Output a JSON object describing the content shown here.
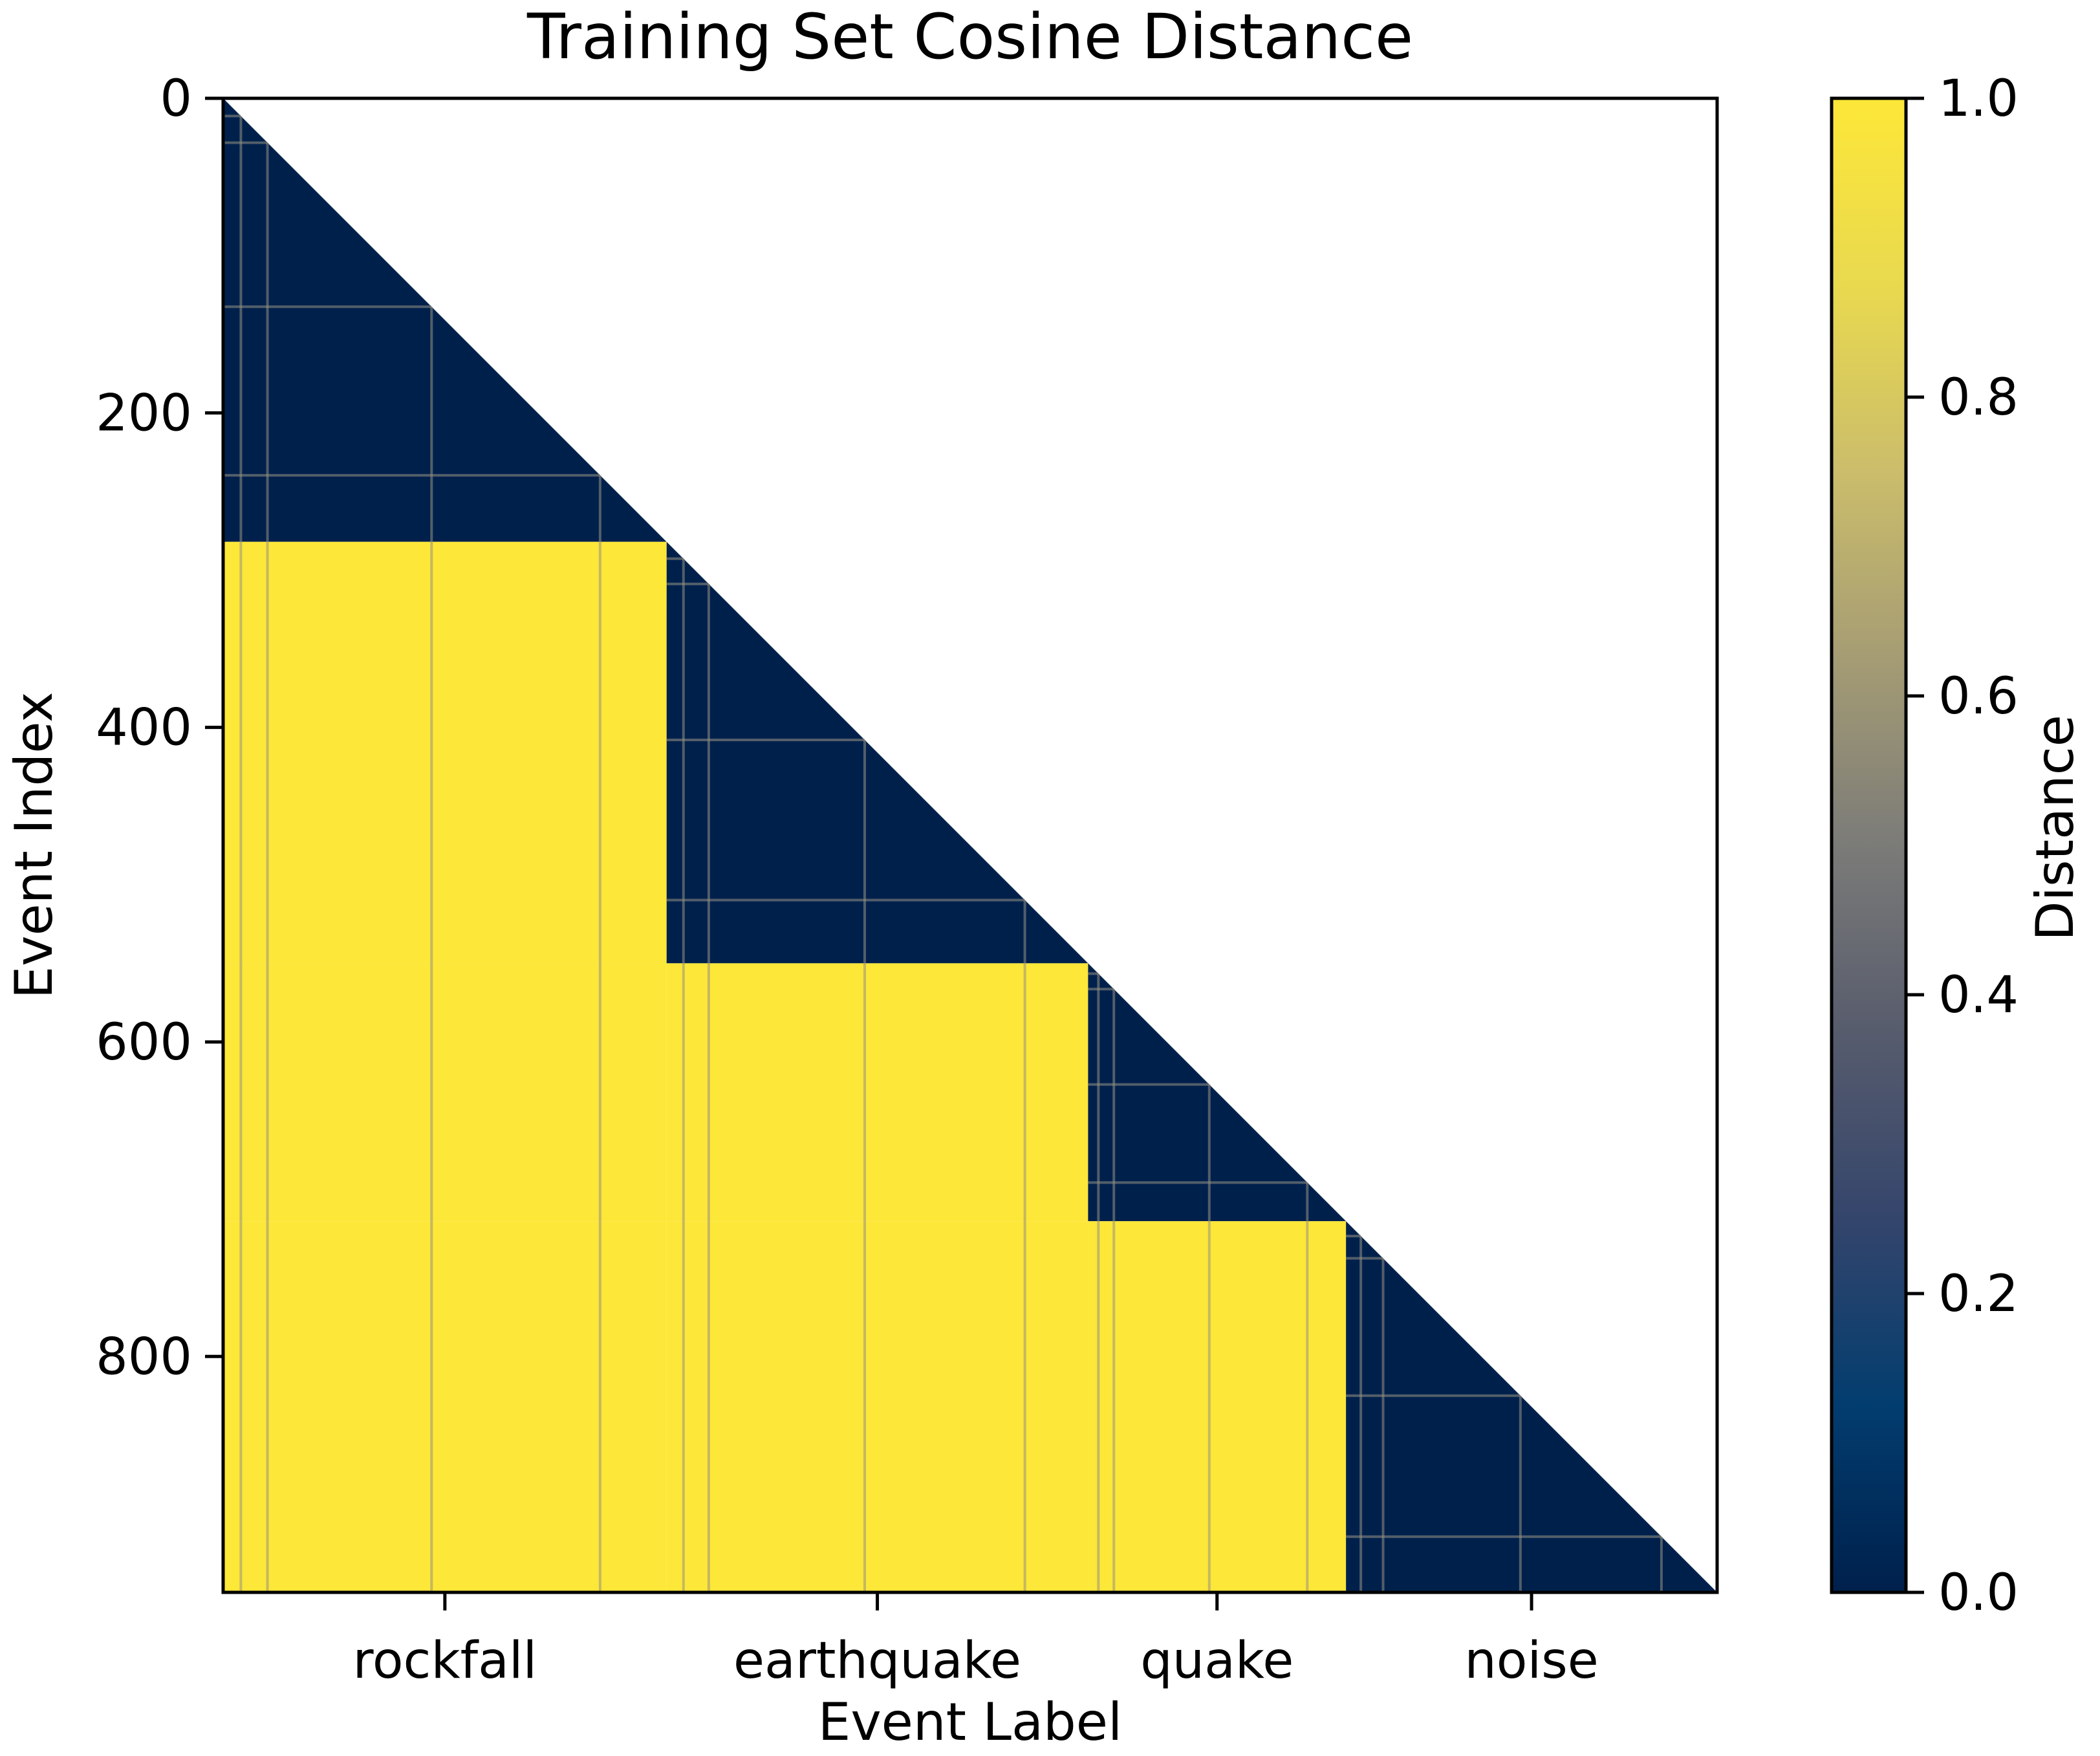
{
  "chart_data": {
    "type": "heatmap",
    "title": "Training Set Cosine Distance",
    "xlabel": "Event Label",
    "ylabel": "Event Index",
    "matrix_shape": "lower-triangular",
    "n_events": 950,
    "xlim": [
      0,
      950
    ],
    "ylim": [
      950,
      0
    ],
    "y_ticks": [
      0,
      200,
      400,
      600,
      800
    ],
    "y_tick_labels": [
      "0",
      "200",
      "400",
      "600",
      "800"
    ],
    "groups": [
      {
        "label": "rockfall",
        "start": 0,
        "end": 282
      },
      {
        "label": "earthquake",
        "start": 282,
        "end": 550
      },
      {
        "label": "quake",
        "start": 550,
        "end": 714
      },
      {
        "label": "noise",
        "start": 714,
        "end": 950
      }
    ],
    "within_group_distance": 0.0,
    "between_group_distance": 1.0,
    "colorbar": {
      "label": "Distance",
      "range": [
        0.0,
        1.0
      ],
      "ticks": [
        0.0,
        0.2,
        0.4,
        0.6,
        0.8,
        1.0
      ],
      "tick_labels": [
        "0.0",
        "0.2",
        "0.4",
        "0.6",
        "0.8",
        "1.0"
      ],
      "colormap": "cividis",
      "colors": [
        "#00204c",
        "#023d6f",
        "#34456c",
        "#575c6d",
        "#7b7b78",
        "#a59c74",
        "#cbbd6b",
        "#e9d94f",
        "#fde738"
      ]
    }
  }
}
